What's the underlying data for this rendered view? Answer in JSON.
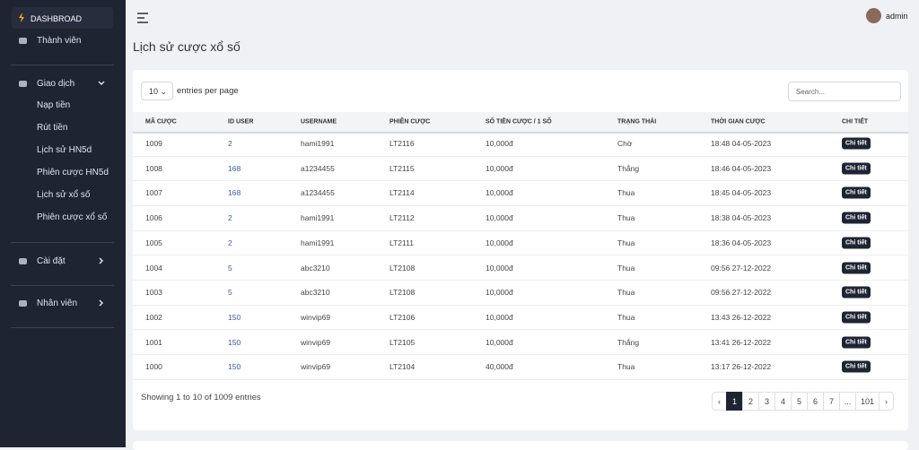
{
  "sidebar": {
    "brand": "DASHBROAD",
    "items": [
      "Thành viên",
      "Giao dịch",
      "Cài đặt",
      "Nhân viên"
    ],
    "sub_items": [
      "Nạp tiền",
      "Rút tiền",
      "Lịch sử HN5d",
      "Phiên cược HN5d",
      "Lịch sử xổ số",
      "Phiên cược xổ số"
    ]
  },
  "header": {
    "user": "admin"
  },
  "page": {
    "title": "Lịch sử cược xổ số"
  },
  "table": {
    "length": "10",
    "length_label": "entries per page",
    "search_placeholder": "Search...",
    "columns": [
      "MÃ CƯỢC",
      "ID USER",
      "USERNAME",
      "PHIÊN CƯỢC",
      "SỐ TIỀN CƯỢC / 1 SỐ",
      "TRẠNG THÁI",
      "THỜI GIAN CƯỢC",
      "CHI TIẾT"
    ],
    "rows": [
      [
        "1009",
        "2",
        "hami1991",
        "LT2116",
        "10,000đ",
        "Chờ",
        "18:48 04-05-2023",
        "Chi tiết"
      ],
      [
        "1008",
        "168",
        "a1234455",
        "LT2115",
        "10,000đ",
        "Thắng",
        "18:46 04-05-2023",
        "Chi tiết"
      ],
      [
        "1007",
        "168",
        "a1234455",
        "LT2114",
        "10,000đ",
        "Thua",
        "18:45 04-05-2023",
        "Chi tiết"
      ],
      [
        "1006",
        "2",
        "hami1991",
        "LT2112",
        "10,000đ",
        "Thua",
        "18:38 04-05-2023",
        "Chi tiết"
      ],
      [
        "1005",
        "2",
        "hami1991",
        "LT2111",
        "10,000đ",
        "Thua",
        "18:36 04-05-2023",
        "Chi tiết"
      ],
      [
        "1004",
        "5",
        "abc3210",
        "LT2108",
        "10,000đ",
        "Thua",
        "09:56 27-12-2022",
        "Chi tiết"
      ],
      [
        "1003",
        "5",
        "abc3210",
        "LT2108",
        "10,000đ",
        "Thua",
        "09:56 27-12-2022",
        "Chi tiết"
      ],
      [
        "1002",
        "150",
        "winvip69",
        "LT2106",
        "10,000đ",
        "Thua",
        "13:43 26-12-2022",
        "Chi tiết"
      ],
      [
        "1001",
        "150",
        "winvip69",
        "LT2105",
        "10,000đ",
        "Thắng",
        "13:41 26-12-2022",
        "Chi tiết"
      ],
      [
        "1000",
        "150",
        "winvip69",
        "LT2104",
        "40,000đ",
        "Thua",
        "13:17 26-12-2022",
        "Chi tiết"
      ]
    ],
    "info": "Showing 1 to 10 of 1009 entries",
    "pagination": [
      "‹",
      "1",
      "2",
      "3",
      "4",
      "5",
      "6",
      "7",
      "...",
      "101",
      "›"
    ]
  }
}
